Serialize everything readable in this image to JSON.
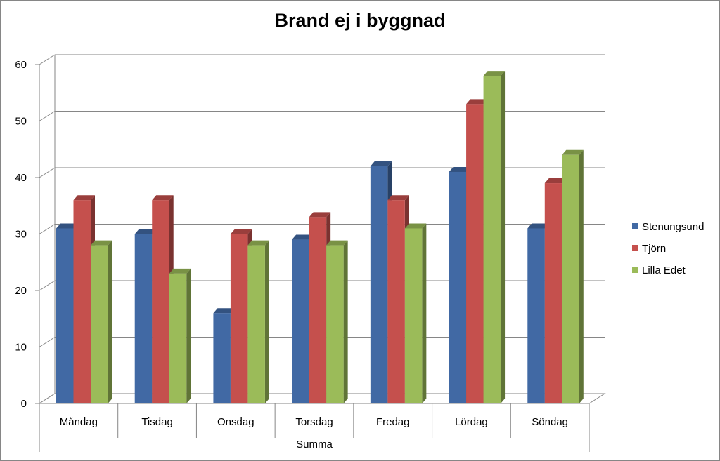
{
  "chart_data": {
    "type": "bar",
    "title": "Brand ej i byggnad",
    "categories": [
      "Måndag",
      "Tisdag",
      "Onsdag",
      "Torsdag",
      "Fredag",
      "Lördag",
      "Söndag"
    ],
    "group_label": "Summa",
    "series": [
      {
        "name": "Stenungsund",
        "values": [
          31,
          30,
          16,
          29,
          42,
          41,
          31
        ]
      },
      {
        "name": "Tjörn",
        "values": [
          36,
          36,
          30,
          33,
          36,
          53,
          39
        ]
      },
      {
        "name": "Lilla Edet",
        "values": [
          28,
          23,
          28,
          28,
          31,
          58,
          44
        ]
      }
    ],
    "ylim": [
      0,
      60
    ],
    "yticks": [
      0,
      10,
      20,
      30,
      40,
      50,
      60
    ],
    "grid": true,
    "legend_position": "right",
    "colors": {
      "Stenungsund": "#4169a4",
      "Tjörn": "#c5504d",
      "Lilla Edet": "#9bbb59"
    }
  }
}
